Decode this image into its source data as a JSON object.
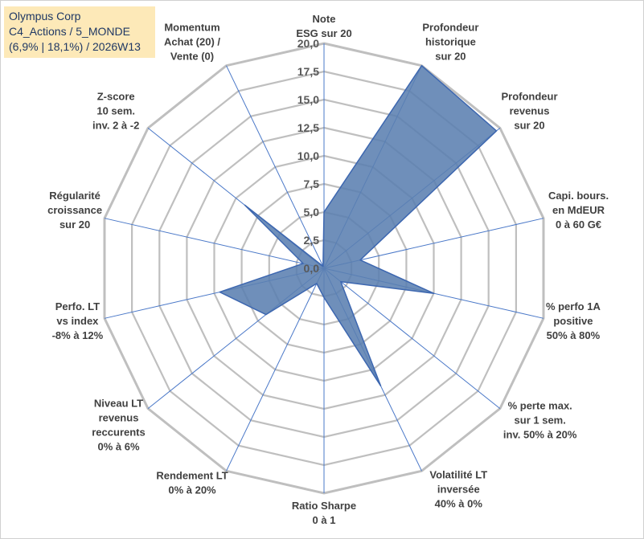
{
  "title_box": {
    "line1": "Olympus Corp",
    "line2": "C4_Actions / 5_MONDE",
    "line3": "(6,9% | 18,1%) / 2026W13"
  },
  "chart_data": {
    "type": "radar",
    "r_max": 20,
    "r_step": 2.5,
    "tick_labels": [
      "0,0",
      "2,5",
      "5,0",
      "7,5",
      "10,0",
      "12,5",
      "15,0",
      "17,5",
      "20,0"
    ],
    "axes": [
      {
        "label": [
          "Note",
          "ESG sur 20"
        ],
        "value": 5.0
      },
      {
        "label": [
          "Profondeur",
          "historique",
          "sur 20"
        ],
        "value": 20.0
      },
      {
        "label": [
          "Profondeur",
          "revenus",
          "sur 20"
        ],
        "value": 19.6
      },
      {
        "label": [
          "Capi. bours.",
          "en MdEUR",
          "0 à 60 G€"
        ],
        "value": 3.3
      },
      {
        "label": [
          "% perfo 1A",
          "positive",
          "50% à 80%"
        ],
        "value": 10.0
      },
      {
        "label": [
          "% perte max.",
          "sur 1 sem.",
          "inv. 50% à 20%"
        ],
        "value": 1.9
      },
      {
        "label": [
          "Volatilité LT",
          "inversée",
          "40% à 0%"
        ],
        "value": 11.6
      },
      {
        "label": [
          "Ratio Sharpe",
          "0 à 1"
        ],
        "value": 2.6
      },
      {
        "label": [
          "Rendement LT",
          "0% à 20%"
        ],
        "value": 1.5
      },
      {
        "label": [
          "Niveau LT",
          "revenus",
          "reccurents",
          "0% à 6%"
        ],
        "value": 6.6
      },
      {
        "label": [
          "Perfo. LT",
          "vs index",
          "-8% à 12%"
        ],
        "value": 9.5
      },
      {
        "label": [
          "Régularité",
          "croissance",
          "sur 20"
        ],
        "value": 1.9
      },
      {
        "label": [
          "Z-score",
          "10 sem.",
          "inv. 2 à -2"
        ],
        "value": 9.0
      },
      {
        "label": [
          "Momentum",
          "Achat (20) /",
          "Vente (0)"
        ],
        "value": 0.2
      }
    ],
    "colors": {
      "fill": "#5b7fb0",
      "stroke": "#3d67b0",
      "grid": "#bfbfbf",
      "spoke": "#4a78c8"
    }
  }
}
